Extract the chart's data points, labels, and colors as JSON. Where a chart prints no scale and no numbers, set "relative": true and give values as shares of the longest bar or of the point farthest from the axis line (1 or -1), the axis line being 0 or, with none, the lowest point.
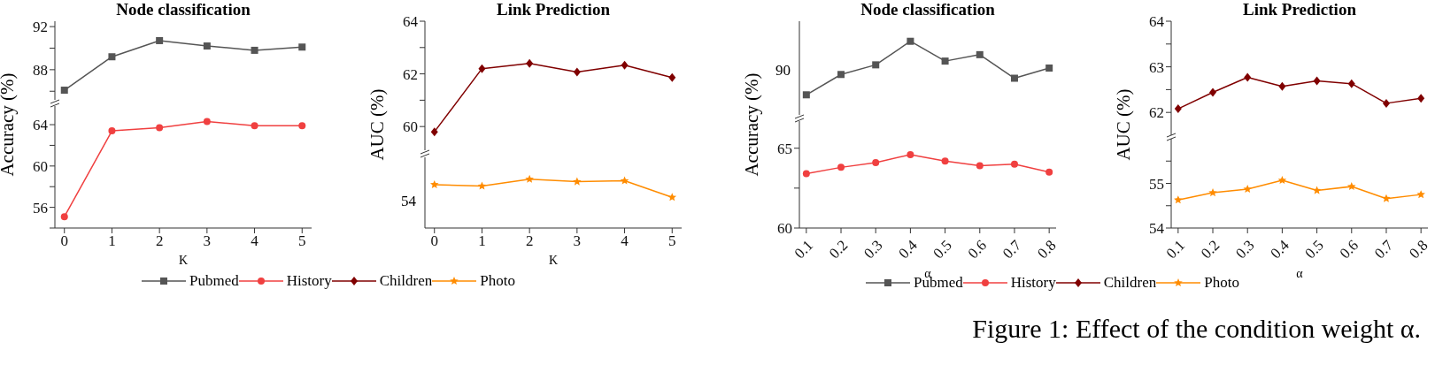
{
  "chart_data": [
    {
      "type": "line",
      "title": "Node classification",
      "categories": [
        "0",
        "1",
        "2",
        "3",
        "4",
        "5"
      ],
      "marker": "square",
      "legend": "bottom",
      "tick_labels": "y",
      "ylim": [
        85.2,
        92.5
      ],
      "yticks": [
        {
          "value": 86,
          "label": null
        },
        88,
        {
          "value": 90,
          "label": null
        },
        92
      ],
      "series": [
        {
          "name": "Pubmed",
          "color": "#555555",
          "values": [
            86.1,
            89.2,
            90.7,
            90.2,
            89.8,
            90.1
          ]
        }
      ]
    },
    {
      "type": "line",
      "xlabel": "K",
      "ylabel": "Accuracy (%)",
      "categories": [
        "0",
        "1",
        "2",
        "3",
        "4",
        "5"
      ],
      "marker": "circle",
      "legend": "bottom",
      "ylim": [
        54,
        65.8
      ],
      "yticks": [
        {
          "value": 54,
          "label": null
        },
        56,
        {
          "value": 58,
          "label": null
        },
        60,
        {
          "value": 62,
          "label": null
        },
        64
      ],
      "series": [
        {
          "name": "History",
          "color": "#f04040",
          "values": [
            55.1,
            63.4,
            63.7,
            64.3,
            63.9,
            63.9
          ]
        }
      ]
    },
    {
      "type": "line",
      "title": "Link Prediction",
      "categories": [
        "0",
        "1",
        "2",
        "3",
        "4",
        "5"
      ],
      "marker": "diamond",
      "legend": "bottom",
      "tick_labels": "y",
      "ylim": [
        59.1,
        64
      ],
      "yticks": [
        {
          "value": 60,
          "label": "60"
        },
        {
          "value": 61,
          "label": null
        },
        62,
        {
          "value": 63,
          "label": null
        },
        64
      ],
      "series": [
        {
          "name": "Children",
          "color": "#800000",
          "values": [
            59.8,
            62.2,
            62.4,
            62.07,
            62.33,
            61.86
          ]
        }
      ]
    },
    {
      "type": "line",
      "xlabel": "K",
      "ylabel": "AUC (%)",
      "categories": [
        "0",
        "1",
        "2",
        "3",
        "4",
        "5"
      ],
      "marker": "star",
      "legend": "bottom",
      "relative": true,
      "annotations": [
        "54"
      ],
      "series": [
        {
          "name": "Photo",
          "color": "#ff8c00",
          "values": [
            0.89,
            0.86,
            1,
            0.95,
            0.97,
            0.63
          ]
        }
      ]
    },
    {
      "type": "line",
      "title": "Node classification",
      "categories": [
        "0.1",
        "0.2",
        "0.3",
        "0.4",
        "0.5",
        "0.6",
        "0.7",
        "0.8"
      ],
      "marker": "square",
      "legend": "bottom",
      "tick_labels": "y",
      "relative": true,
      "annotations": [
        "90"
      ],
      "series": [
        {
          "name": "Pubmed",
          "color": "#555555",
          "values": [
            0,
            0.38,
            0.56,
            1,
            0.63,
            0.75,
            0.31,
            0.5
          ]
        }
      ]
    },
    {
      "type": "line",
      "xlabel": "α",
      "ylabel": "Accuracy (%)",
      "categories": [
        "0.1",
        "0.2",
        "0.3",
        "0.4",
        "0.5",
        "0.6",
        "0.7",
        "0.8"
      ],
      "marker": "circle",
      "legend": "bottom",
      "ylim": [
        60,
        66.7
      ],
      "yticks": [
        60,
        {
          "value": 62.5,
          "label": null
        },
        65
      ],
      "series": [
        {
          "name": "History",
          "color": "#f04040",
          "values": [
            63.4,
            63.8,
            64.1,
            64.6,
            64.2,
            63.9,
            64.0,
            63.5
          ]
        }
      ]
    },
    {
      "type": "line",
      "title": "Link Prediction",
      "categories": [
        "0.1",
        "0.2",
        "0.3",
        "0.4",
        "0.5",
        "0.6",
        "0.7",
        "0.8"
      ],
      "marker": "diamond",
      "legend": "bottom",
      "tick_labels": "y",
      "ylim": [
        61.5,
        64
      ],
      "yticks": [
        62,
        {
          "value": 62.5,
          "label": null
        },
        63,
        {
          "value": 63.5,
          "label": null
        },
        64
      ],
      "series": [
        {
          "name": "Children",
          "color": "#800000",
          "values": [
            62.08,
            62.44,
            62.77,
            62.57,
            62.69,
            62.63,
            62.2,
            62.31
          ]
        }
      ]
    },
    {
      "type": "line",
      "xlabel": "α",
      "ylabel": "AUC (%)",
      "categories": [
        "0.1",
        "0.2",
        "0.3",
        "0.4",
        "0.5",
        "0.6",
        "0.7",
        "0.8"
      ],
      "marker": "star",
      "legend": "bottom",
      "ylim": [
        54,
        56
      ],
      "yticks": [
        54,
        {
          "value": 54.5,
          "label": null
        },
        55,
        {
          "value": 55.5,
          "label": null
        }
      ],
      "series": [
        {
          "name": "Photo",
          "color": "#ff8c00",
          "values": [
            54.63,
            54.79,
            54.87,
            55.07,
            54.84,
            54.93,
            54.66,
            54.75
          ]
        }
      ],
      "annotations": [
        "Figure 1: Effect of the condition weight α."
      ]
    }
  ]
}
